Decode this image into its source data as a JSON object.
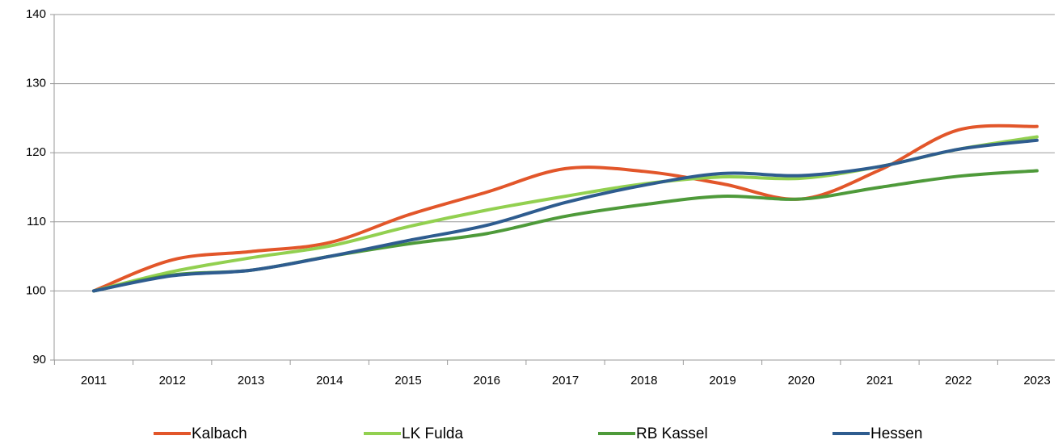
{
  "chart_data": {
    "type": "line",
    "categories": [
      "2011",
      "2012",
      "2013",
      "2014",
      "2015",
      "2016",
      "2017",
      "2018",
      "2019",
      "2020",
      "2021",
      "2022",
      "2023"
    ],
    "series": [
      {
        "name": "Kalbach",
        "color": "#e2562a",
        "values": [
          100,
          104.5,
          105.7,
          107,
          111,
          114.3,
          117.7,
          117.3,
          115.5,
          113.3,
          117.5,
          123.3,
          123.8
        ]
      },
      {
        "name": "LK Fulda",
        "color": "#92d050",
        "values": [
          100,
          102.8,
          104.8,
          106.5,
          109.3,
          111.7,
          113.7,
          115.5,
          116.5,
          116.3,
          118,
          120.5,
          122.3
        ]
      },
      {
        "name": "RB Kassel",
        "color": "#4e9a3a",
        "values": [
          100,
          102.3,
          103,
          105,
          106.8,
          108.3,
          110.8,
          112.5,
          113.7,
          113.3,
          115,
          116.6,
          117.4
        ]
      },
      {
        "name": "Hessen",
        "color": "#2e5c8f",
        "values": [
          100,
          102.2,
          103,
          105,
          107.3,
          109.5,
          112.8,
          115.3,
          117,
          116.7,
          118,
          120.5,
          121.8
        ]
      }
    ],
    "ylim": [
      90,
      140
    ],
    "yticks": [
      90,
      100,
      110,
      120,
      130,
      140
    ],
    "grid": true,
    "legend": "bottom"
  }
}
